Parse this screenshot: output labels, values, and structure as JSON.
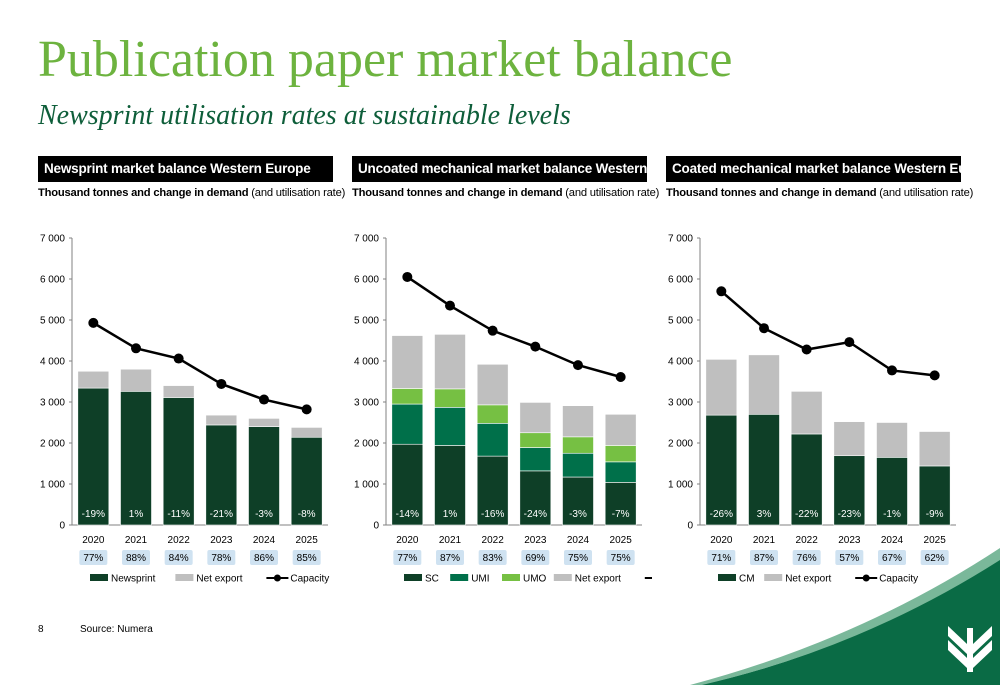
{
  "page": {
    "title": "Publication paper market balance",
    "subtitle": "Newsprint utilisation rates at sustainable levels",
    "page_number": "8",
    "source": "Source: Numera"
  },
  "colors": {
    "title_green": "#6db33f",
    "dark_green": "#0e3f27",
    "teal": "#00704a",
    "light_green": "#76c043",
    "gray": "#bfbfbf",
    "badge_bg": "#cfe2f1",
    "logo_bg": "#0a6b45"
  },
  "chart_data": [
    {
      "type": "bar",
      "stacked": true,
      "title": "Newsprint market balance Western Europe",
      "subtitle_bold": "Thousand tonnes and change in demand",
      "subtitle_rest": " (and utilisation rate)",
      "categories": [
        "2020",
        "2021",
        "2022",
        "2023",
        "2024",
        "2025"
      ],
      "series": [
        {
          "name": "Newsprint",
          "color": "#0e3f27",
          "values": [
            3340,
            3260,
            3110,
            2440,
            2400,
            2140
          ]
        },
        {
          "name": "Net export",
          "color": "#bfbfbf",
          "values": [
            410,
            540,
            290,
            240,
            200,
            240
          ]
        }
      ],
      "line": {
        "name": "Capacity",
        "values": [
          4930,
          4310,
          4060,
          3440,
          3060,
          2820
        ]
      },
      "demand_change": [
        "-19%",
        "1%",
        "-11%",
        "-21%",
        "-3%",
        "-8%"
      ],
      "utilisation": [
        "77%",
        "88%",
        "84%",
        "78%",
        "86%",
        "85%"
      ],
      "ylim": [
        0,
        7000
      ],
      "yticks": [
        "0",
        "1 000",
        "2 000",
        "3 000",
        "4 000",
        "5 000",
        "6 000",
        "7 000"
      ]
    },
    {
      "type": "bar",
      "stacked": true,
      "title": "Uncoated mechanical market balance Western Europe",
      "subtitle_bold": "Thousand tonnes and change in demand",
      "subtitle_rest": " (and utilisation rate)",
      "categories": [
        "2020",
        "2021",
        "2022",
        "2023",
        "2024",
        "2025"
      ],
      "series": [
        {
          "name": "SC",
          "color": "#0e3f27",
          "values": [
            1970,
            1940,
            1680,
            1320,
            1170,
            1040
          ]
        },
        {
          "name": "UMI",
          "color": "#00704a",
          "values": [
            980,
            930,
            800,
            570,
            580,
            500
          ]
        },
        {
          "name": "UMO",
          "color": "#76c043",
          "values": [
            380,
            450,
            450,
            360,
            400,
            400
          ]
        },
        {
          "name": "Net export",
          "color": "#bfbfbf",
          "values": [
            1290,
            1330,
            990,
            740,
            760,
            760
          ]
        }
      ],
      "line": {
        "name": "Capacity",
        "values": [
          6050,
          5350,
          4740,
          4350,
          3900,
          3610
        ]
      },
      "demand_change": [
        "-14%",
        "1%",
        "-16%",
        "-24%",
        "-3%",
        "-7%"
      ],
      "utilisation": [
        "77%",
        "87%",
        "83%",
        "69%",
        "75%",
        "75%"
      ],
      "ylim": [
        0,
        7000
      ],
      "yticks": [
        "0",
        "1 000",
        "2 000",
        "3 000",
        "4 000",
        "5 000",
        "6 000",
        "7 000"
      ]
    },
    {
      "type": "bar",
      "stacked": true,
      "title": "Coated mechanical market balance Western Europe",
      "subtitle_bold": "Thousand tonnes and change in demand",
      "subtitle_rest": " (and utilisation rate)",
      "categories": [
        "2020",
        "2021",
        "2022",
        "2023",
        "2024",
        "2025"
      ],
      "series": [
        {
          "name": "CM",
          "color": "#0e3f27",
          "values": [
            2680,
            2700,
            2220,
            1690,
            1650,
            1440
          ]
        },
        {
          "name": "Net export",
          "color": "#bfbfbf",
          "values": [
            1360,
            1450,
            1040,
            830,
            850,
            840
          ]
        }
      ],
      "line": {
        "name": "Capacity",
        "values": [
          5700,
          4800,
          4280,
          4460,
          3770,
          3650
        ]
      },
      "demand_change": [
        "-26%",
        "3%",
        "-22%",
        "-23%",
        "-1%",
        "-9%"
      ],
      "utilisation": [
        "71%",
        "87%",
        "76%",
        "57%",
        "67%",
        "62%"
      ],
      "ylim": [
        0,
        7000
      ],
      "yticks": [
        "0",
        "1 000",
        "2 000",
        "3 000",
        "4 000",
        "5 000",
        "6 000",
        "7 000"
      ]
    }
  ]
}
